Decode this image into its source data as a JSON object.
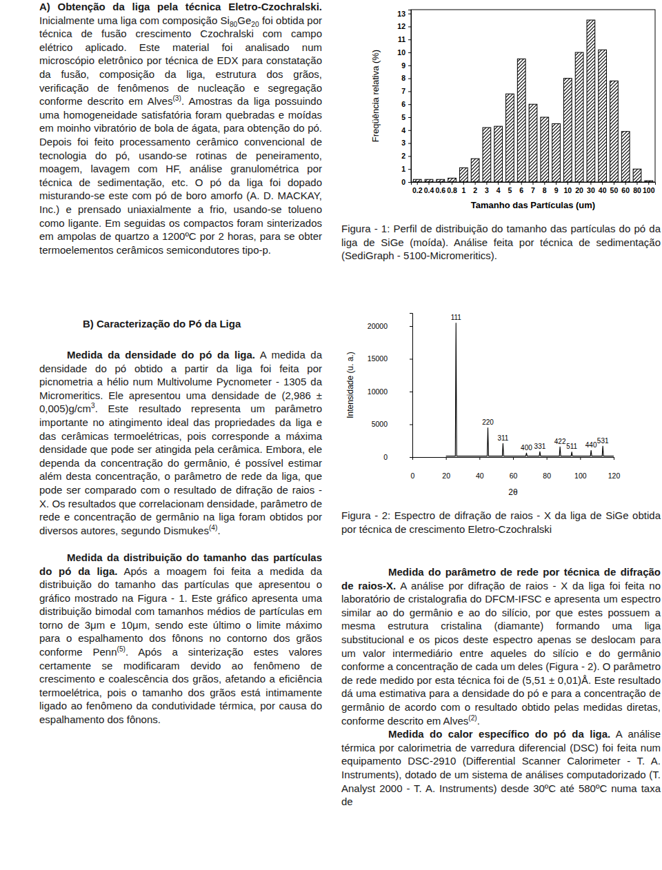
{
  "document": {
    "section_a": {
      "lead": "A) Obtenção da liga pela técnica Eletro-Czochralski.",
      "body": [
        "Inicialmente uma liga com composição Si",
        {
          "sub": "80"
        },
        "Ge",
        {
          "sub": "20"
        },
        " foi obtida por técnica de fusão crescimento Czochralski com campo elétrico aplicado. Este material foi analisado num microscópio eletrônico por técnica de EDX para constatação da fusão, composição da liga, estrutura dos grãos, verificação de fenômenos de nucleação e segregação conforme descrito em Alves",
        {
          "sup": "(3)"
        },
        ". Amostras da liga possuindo uma homogeneidade satisfatória foram quebradas e moídas em moinho vibratório de bola de ágata, para obtenção do pó. Depois foi feito processamento cerâmico convencional de tecnologia do pó, usando-se rotinas de peneiramento, moagem, lavagem com HF, análise granulométrica por técnica de sedimentação, etc. O pó da liga foi dopado misturando-se este com pó de boro amorfo (A. D. MACKAY, Inc.) e prensado uniaxialmente a frio, usando-se tolueno como ligante. Em seguidas os compactos foram sinterizados em ampolas de quartzo a 1200ºC por 2 horas, para se obter termoelementos cerâmicos semicondutores tipo-p."
      ]
    },
    "section_b": {
      "heading": "B) Caracterização do Pó da Liga",
      "paragraphs": [
        {
          "lead": "Medida da densidade do pó da liga.",
          "body": [
            "A medida da densidade do pó obtido a partir da liga foi feita por picnometria a hélio num Multivolume Pycnometer - 1305 da Micromeritics. Ele apresentou uma densidade de (2,986 ± 0,005)g/cm",
            {
              "sup": "3"
            },
            ". Este resultado representa um parâmetro importante no atingimento ideal das propriedades da liga e das cerâmicas termoelétricas, pois corresponde a máxima densidade que pode ser atingida pela cerâmica. Embora, ele dependa da concentração do germânio, é possível estimar além desta concentração, o parâmetro de rede da liga, que pode ser comparado com o resultado de difração de raios - X. Os resultados que correlacionam densidade, parâmetro de rede e concentração de germânio na liga foram obtidos por diversos autores, segundo Dismukes",
            {
              "sup": "(4)"
            },
            "."
          ]
        },
        {
          "lead": "Medida da distribuição do tamanho das partículas do pó da liga.",
          "body": [
            "Após a moagem foi feita a medida da distribuição do tamanho das partículas que apresentou o gráfico mostrado na Figura - 1. Este gráfico apresenta uma distribuição bimodal com tamanhos médios de partículas em torno de 3μm e 10μm, sendo este último o limite máximo para o espalhamento dos fônons no contorno dos grãos conforme Penn",
            {
              "sup": "(5)"
            },
            ". Após a sinterização estes valores certamente se modificaram devido ao fenômeno de crescimento e coalescência dos grãos, afetando a eficiência termoelétrica, pois o tamanho dos grãos está intimamente ligado ao fenômeno da condutividade térmica, por causa do espalhamento dos fônons."
          ]
        }
      ]
    },
    "figure_1_caption": "Figura - 1: Perfil de distribuição do tamanho das partículas do pó da liga de SiGe (moída). Análise feita por técnica de sedimentação (SediGraph - 5100-Micromeritics).",
    "figure_2_caption": "Figura - 2: Espectro de difração de raios - X da liga de SiGe obtida por técnica de crescimento Eletro-Czochralski",
    "right_paragraphs": [
      {
        "lead": "Medida do parâmetro de rede por técnica de difração de raios-X.",
        "body": [
          "A análise por difração de raios - X da liga foi feita no laboratório de cristalografia do DFCM-IFSC e apresenta um espectro similar ao do germânio e ao do silício, por que estes possuem a mesma estrutura cristalina (diamante) formando uma liga substitucional e os picos deste espectro apenas se deslocam para um valor intermediário entre aqueles do silício e do germânio conforme a concentração de cada um deles (Figura - 2). O parâmetro de rede medido por esta técnica foi de (5,51 ± 0,01)Å. Este resultado dá uma estimativa para a densidade do pó e para a concentração de germânio de acordo com o resultado obtido pelas medidas diretas, conforme descrito em Alves",
          {
            "sup": "(2)"
          },
          "."
        ]
      },
      {
        "lead": "Medida do calor específico do pó da liga.",
        "body": [
          "A análise térmica por calorimetria de varredura diferencial (DSC) foi feita num equipamento DSC-2910 (Differential Scanner Calorimeter - T. A. Instruments), dotado de um sistema de análises computadorizado (T. Analyst 2000 - T. A. Instruments) desde 30ºC até 580ºC numa taxa de"
        ]
      }
    ]
  },
  "chart_data": [
    {
      "type": "bar",
      "xlabel": "Tamanho das Partículas (um)",
      "ylabel": "Freqüência relativa (%)",
      "categories": [
        "0.2",
        "0.4",
        "0.6",
        "0.8",
        "1",
        "2",
        "3",
        "4",
        "5",
        "6",
        "7",
        "8",
        "9",
        "10",
        "20",
        "30",
        "40",
        "50",
        "60",
        "80",
        "100"
      ],
      "values": [
        0.2,
        0.2,
        0.2,
        0.3,
        1.1,
        1.8,
        4.2,
        4.3,
        6.8,
        9.5,
        6.0,
        5.0,
        4.5,
        8.0,
        10.0,
        12.5,
        10.2,
        7.8,
        3.9,
        1.0,
        0.1
      ],
      "color": "#000000",
      "ylim": [
        0,
        13.3
      ],
      "yticks": [
        0,
        1,
        2,
        3,
        4,
        5,
        6,
        7,
        8,
        9,
        10,
        11,
        12,
        13
      ]
    },
    {
      "type": "line",
      "xlabel": "2θ",
      "ylabel": "Intensidade (u. a.)",
      "x": [
        20,
        25.6,
        26,
        26.4,
        44.6,
        45,
        45.4,
        53.6,
        54,
        54.4,
        67.6,
        68,
        68.4,
        75.6,
        76,
        76.4,
        87.6,
        88,
        88.4,
        94.6,
        95,
        95.4,
        106.1,
        106.5,
        106.9,
        113.1,
        113.5,
        113.9,
        120
      ],
      "values": [
        150,
        150,
        20500,
        150,
        150,
        4500,
        150,
        150,
        2100,
        150,
        150,
        650,
        150,
        150,
        850,
        150,
        150,
        1600,
        150,
        150,
        800,
        150,
        150,
        1050,
        150,
        150,
        1700,
        150,
        150
      ],
      "color": "#000000",
      "xlim": [
        0,
        120
      ],
      "xticks": [
        0,
        20,
        40,
        60,
        80,
        100,
        120
      ],
      "ylim": [
        0,
        22000
      ],
      "yticks": [
        0,
        5000,
        10000,
        15000,
        20000
      ],
      "annotations": [
        {
          "text": "111",
          "x": 26,
          "y": 20500
        },
        {
          "text": "220",
          "x": 45,
          "y": 4500
        },
        {
          "text": "311",
          "x": 54,
          "y": 2100
        },
        {
          "text": "400",
          "x": 68,
          "y": 650
        },
        {
          "text": "331",
          "x": 76,
          "y": 850
        },
        {
          "text": "422",
          "x": 88,
          "y": 1600
        },
        {
          "text": "511",
          "x": 95,
          "y": 800
        },
        {
          "text": "440",
          "x": 106.5,
          "y": 1050
        },
        {
          "text": "531",
          "x": 113.5,
          "y": 1700
        }
      ]
    }
  ]
}
